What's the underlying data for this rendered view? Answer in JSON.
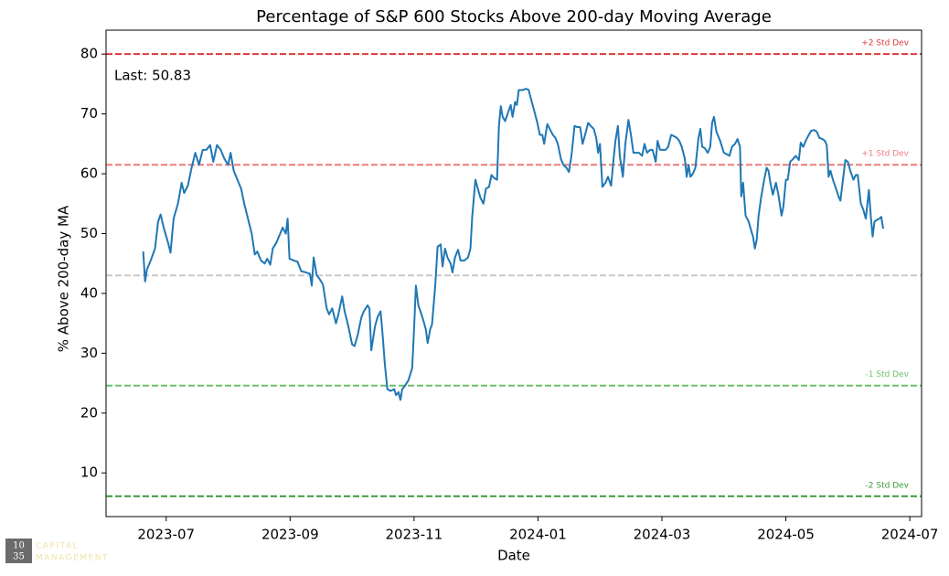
{
  "chart_data": {
    "type": "line",
    "title": "Percentage of S&P 600 Stocks Above 200-day Moving Average",
    "xlabel": "Date",
    "ylabel": "% Above 200-day MA",
    "color": "#1f77b4",
    "xlim": [
      6.03,
      19.19
    ],
    "ylim": [
      2.7,
      84
    ],
    "xticks": [
      {
        "value": 7,
        "label": "2023-07"
      },
      {
        "value": 9,
        "label": "2023-09"
      },
      {
        "value": 11,
        "label": "2023-11"
      },
      {
        "value": 13,
        "label": "2024-01"
      },
      {
        "value": 15,
        "label": "2024-03"
      },
      {
        "value": 17,
        "label": "2024-05"
      },
      {
        "value": 19,
        "label": "2024-07"
      }
    ],
    "yticks": [
      10,
      20,
      30,
      40,
      50,
      60,
      70,
      80
    ],
    "hlines": [
      {
        "value": 80,
        "label": "+2 Std Dev",
        "color": "#e0393b"
      },
      {
        "value": 61.5,
        "label": "+1 Std Dev",
        "color": "#ee7b7c"
      },
      {
        "value": 43,
        "color": "#c8c8c8"
      },
      {
        "value": 24.6,
        "label": "-1 Std Dev",
        "color": "#6cbf6c"
      },
      {
        "value": 6.1,
        "label": "-2 Std Dev",
        "color": "#3a9a3a"
      }
    ],
    "annotation": "Last: 50.83",
    "x": [
      6.63,
      6.66,
      6.69,
      6.75,
      6.82,
      6.87,
      6.91,
      6.96,
      7.03,
      7.07,
      7.12,
      7.19,
      7.25,
      7.29,
      7.35,
      7.41,
      7.47,
      7.53,
      7.59,
      7.65,
      7.71,
      7.76,
      7.82,
      7.88,
      7.94,
      8.0,
      8.04,
      8.09,
      8.15,
      8.21,
      8.26,
      8.32,
      8.38,
      8.43,
      8.47,
      8.53,
      8.59,
      8.63,
      8.68,
      8.72,
      8.78,
      8.84,
      8.88,
      8.93,
      8.96,
      8.99,
      9.06,
      9.12,
      9.18,
      9.26,
      9.32,
      9.35,
      9.38,
      9.43,
      9.47,
      9.53,
      9.59,
      9.63,
      9.68,
      9.74,
      9.78,
      9.84,
      9.88,
      9.94,
      10.0,
      10.04,
      10.09,
      10.15,
      10.19,
      10.25,
      10.28,
      10.31,
      10.37,
      10.41,
      10.46,
      10.49,
      10.53,
      10.57,
      10.62,
      10.68,
      10.71,
      10.75,
      10.78,
      10.81,
      10.85,
      10.91,
      10.97,
      11.0,
      11.03,
      11.07,
      11.12,
      11.15,
      11.19,
      11.22,
      11.26,
      11.29,
      11.34,
      11.38,
      11.43,
      11.46,
      11.5,
      11.54,
      11.59,
      11.62,
      11.66,
      11.71,
      11.75,
      11.81,
      11.87,
      11.91,
      11.94,
      11.99,
      12.03,
      12.07,
      12.12,
      12.16,
      12.21,
      12.25,
      12.29,
      12.34,
      12.37,
      12.4,
      12.43,
      12.47,
      12.51,
      12.56,
      12.59,
      12.63,
      12.66,
      12.69,
      12.75,
      12.81,
      12.85,
      12.9,
      12.94,
      12.99,
      13.03,
      13.07,
      13.1,
      13.15,
      13.19,
      13.24,
      13.28,
      13.32,
      13.37,
      13.41,
      13.46,
      13.5,
      13.54,
      13.59,
      13.63,
      13.68,
      13.72,
      13.76,
      13.81,
      13.85,
      13.9,
      13.94,
      13.97,
      14.0,
      14.04,
      14.09,
      14.13,
      14.18,
      14.22,
      14.25,
      14.29,
      14.32,
      14.37,
      14.41,
      14.46,
      14.5,
      14.54,
      14.59,
      14.63,
      14.68,
      14.72,
      14.76,
      14.81,
      14.85,
      14.9,
      14.93,
      14.97,
      15.01,
      15.06,
      15.1,
      15.15,
      15.19,
      15.24,
      15.28,
      15.32,
      15.37,
      15.4,
      15.43,
      15.46,
      15.5,
      15.54,
      15.59,
      15.62,
      15.65,
      15.69,
      15.74,
      15.78,
      15.81,
      15.84,
      15.88,
      15.94,
      16.0,
      16.04,
      16.09,
      16.13,
      16.18,
      16.22,
      16.26,
      16.28,
      16.31,
      16.35,
      16.4,
      16.44,
      16.47,
      16.5,
      16.53,
      16.56,
      16.6,
      16.65,
      16.69,
      16.72,
      16.75,
      16.79,
      16.84,
      16.88,
      16.93,
      16.96,
      17.0,
      17.03,
      17.07,
      17.12,
      17.16,
      17.21,
      17.24,
      17.28,
      17.32,
      17.37,
      17.41,
      17.46,
      17.5,
      17.54,
      17.59,
      17.63,
      17.66,
      17.69,
      17.72,
      17.76,
      17.81,
      17.85,
      17.88,
      17.91,
      17.96,
      18.0,
      18.04,
      18.09,
      18.13,
      18.16,
      18.21,
      18.25,
      18.29,
      18.34,
      18.37,
      18.4,
      18.43,
      18.47,
      18.51,
      18.54,
      18.57
    ],
    "values": [
      47,
      42,
      44,
      45.5,
      47.5,
      52,
      53.2,
      51,
      48.5,
      46.8,
      52.5,
      55,
      58.5,
      56.8,
      58,
      61,
      63.5,
      61.5,
      64,
      64,
      64.8,
      62,
      64.8,
      64,
      62.5,
      61.5,
      63.5,
      60.5,
      59,
      57.5,
      55,
      52.5,
      50,
      46.5,
      47,
      45.5,
      45,
      45.8,
      44.8,
      47.5,
      48.5,
      50,
      51,
      50,
      52.5,
      45.8,
      45.5,
      45.3,
      43.7,
      43.5,
      43.3,
      41.3,
      46,
      43,
      42.5,
      41.5,
      37.5,
      36.5,
      37.5,
      35,
      36.5,
      39.5,
      37,
      34.5,
      31.5,
      31.2,
      33,
      36,
      37,
      38,
      37.5,
      30.5,
      34.5,
      36,
      37,
      33.5,
      28,
      24,
      23.7,
      24,
      23,
      23.5,
      22.2,
      24,
      24.5,
      25.5,
      27.5,
      34,
      41.3,
      38,
      36.5,
      35.5,
      34,
      31.7,
      34,
      34.8,
      41,
      47.8,
      48.2,
      44.5,
      47.5,
      46,
      45,
      43.5,
      46,
      47.3,
      45.5,
      45.5,
      46,
      47.5,
      53,
      59,
      57.5,
      56,
      55,
      57.5,
      57.8,
      59.8,
      59.3,
      59,
      68,
      71.3,
      69.5,
      68.8,
      70,
      71.5,
      69.5,
      72,
      71.5,
      74,
      74,
      74.2,
      74,
      72,
      70.5,
      68.5,
      66.5,
      66.5,
      65,
      68.3,
      67.5,
      66.5,
      66,
      65,
      62.5,
      61.5,
      61,
      60.3,
      63,
      68,
      67.8,
      67.8,
      65,
      66.5,
      68.5,
      68,
      67.5,
      66,
      63.5,
      65,
      57.8,
      58.5,
      59.5,
      58,
      62.5,
      65.5,
      68,
      63,
      59.5,
      65,
      69,
      66.5,
      63.5,
      63.5,
      63.5,
      63,
      65,
      63.5,
      64,
      64,
      62,
      65.5,
      64,
      64,
      64,
      64.5,
      66.5,
      66.3,
      66,
      65.5,
      64.5,
      62.5,
      59.5,
      61.5,
      59.5,
      60,
      61,
      66,
      67.5,
      64.5,
      64.3,
      63.5,
      64.5,
      68.5,
      69.5,
      67,
      65.5,
      63.5,
      63.3,
      63,
      64.5,
      65,
      65.8,
      64.5,
      56.2,
      58.5,
      53,
      52,
      50.5,
      49.5,
      47.5,
      49,
      53,
      56,
      59,
      61,
      60.5,
      58.5,
      56.5,
      58.5,
      56.5,
      53,
      54.5,
      59,
      59,
      62,
      62.5,
      63,
      62.3,
      65.2,
      64.5,
      65.5,
      66.5,
      67.2,
      67.3,
      67,
      66,
      65.8,
      65.5,
      64.8,
      59.5,
      60.5,
      59,
      57.5,
      56.2,
      55.5,
      58,
      62.3,
      62,
      60.5,
      59,
      59.8,
      59.8,
      55,
      54,
      52.5,
      57.3,
      53,
      49.5,
      52,
      52.3,
      52.5,
      52.8,
      50.83
    ]
  },
  "logo": {
    "top": "10",
    "bottom": "35",
    "line1": "CAPITAL",
    "line2": "MANAGEMENT"
  }
}
